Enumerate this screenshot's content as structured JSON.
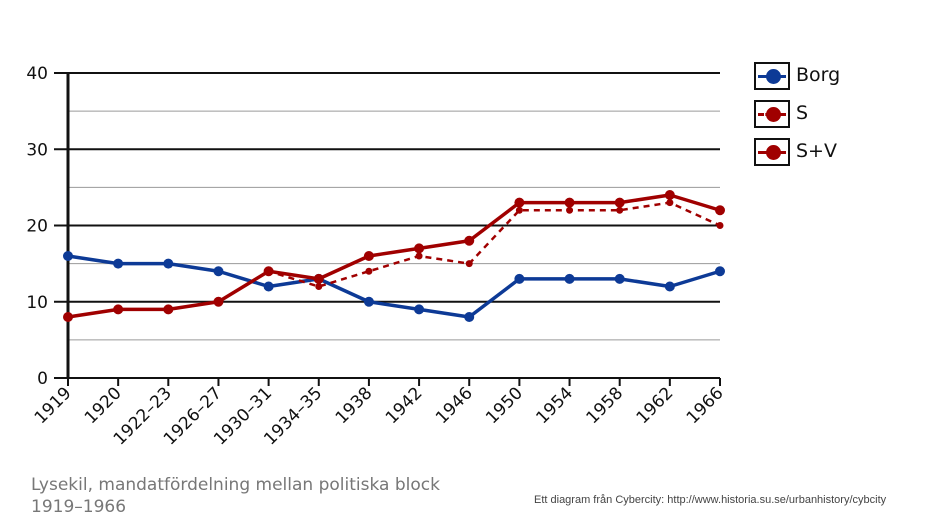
{
  "chart_data": {
    "type": "line",
    "categories": [
      "1919",
      "1920",
      "1922–23",
      "1926–27",
      "1930–31",
      "1934–35",
      "1938",
      "1942",
      "1946",
      "1950",
      "1954",
      "1958",
      "1962",
      "1966"
    ],
    "series": [
      {
        "name": "Borg",
        "color": "#0d3a96",
        "style": "solid",
        "values": [
          16,
          15,
          15,
          14,
          12,
          13,
          10,
          9,
          8,
          13,
          13,
          13,
          12,
          14
        ]
      },
      {
        "name": "S",
        "color": "#a00000",
        "style": "dashed",
        "values": [
          8,
          9,
          9,
          10,
          14,
          12,
          14,
          16,
          15,
          22,
          22,
          22,
          23,
          20
        ]
      },
      {
        "name": "S+V",
        "color": "#a00000",
        "style": "solid",
        "values": [
          8,
          9,
          9,
          10,
          14,
          13,
          16,
          17,
          18,
          23,
          23,
          23,
          24,
          22
        ]
      }
    ],
    "yticks": [
      0,
      10,
      20,
      30,
      40
    ],
    "ylim": [
      0,
      40
    ],
    "grid": true,
    "legend_position": "right",
    "caption": "Lysekil, mandatfördelning mellan politiska block 1919–1966",
    "credit": "Ett diagram från Cybercity: http://www.historia.su.se/urbanhistory/cybcity"
  }
}
